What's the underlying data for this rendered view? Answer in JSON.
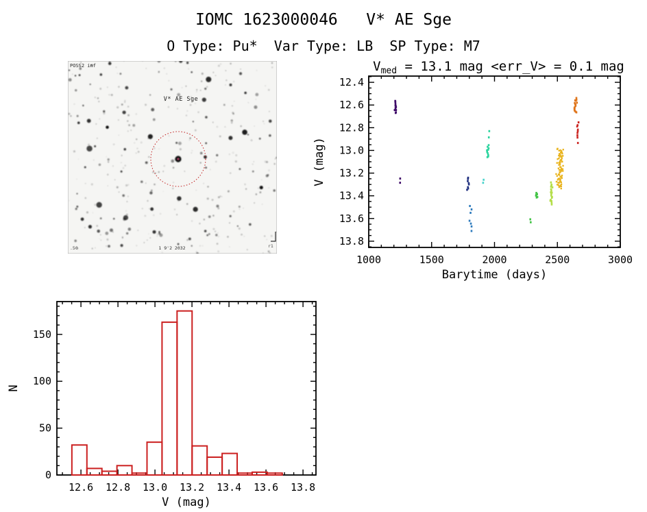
{
  "page": {
    "title": "IOMC 1623000046   V* AE Sge",
    "subtitle": "O Type: Pu*  Var Type: LB  SP Type: M7",
    "background": "#ffffff"
  },
  "finding_chart": {
    "target_label": "V* AE Sge",
    "survey_label": "POSS2 inf",
    "bottom_label": "1 9'2 2032",
    "corner_left_label": ".50",
    "corner_right_label": "r1",
    "marker_circle_color": "#c22020",
    "label_color": "#b22222"
  },
  "chart_data": [
    {
      "type": "scatter",
      "title": "Vmed = 13.1 mag <err_V> = 0.1 mag",
      "title_parts": {
        "base": "V",
        "sub": "med",
        "rest": " = 13.1 mag <err_V> = 0.1 mag"
      },
      "xlabel": "Barytime (days)",
      "ylabel": "V (mag)",
      "xlim": [
        1000,
        3000
      ],
      "ylim": [
        12.345,
        13.855
      ],
      "y_inverted": true,
      "xticks": [
        1000,
        1500,
        2000,
        2500,
        3000
      ],
      "yticks": [
        12.4,
        12.6,
        12.8,
        13.0,
        13.2,
        13.4,
        13.6,
        13.8
      ],
      "x_minor_step": 100,
      "y_minor_step": 0.05,
      "grid": false,
      "legend": "none",
      "series": [
        {
          "name": "epoch-1 purple strip",
          "color": "#3f0b69",
          "x": 1213,
          "xs": 2,
          "ymin": 12.56,
          "ymax": 12.67,
          "n": 12
        },
        {
          "name": "epoch-1 purple point",
          "color": "#3f0b69",
          "x": 1245,
          "xs": 1,
          "ymin": 13.25,
          "ymax": 13.28,
          "n": 2
        },
        {
          "name": "epoch-2 navy strip",
          "color": "#20307f",
          "x": 1790,
          "xs": 2,
          "ymin": 13.24,
          "ymax": 13.35,
          "n": 8
        },
        {
          "name": "epoch-3 blue points",
          "color": "#2e7bbd",
          "x": 1812,
          "xs": 2,
          "points_y": [
            13.49,
            13.52,
            13.55,
            13.62,
            13.645,
            13.67,
            13.71
          ]
        },
        {
          "name": "epoch-4 cyan dash",
          "color": "#49d3cb",
          "x": 1910,
          "xs": 1,
          "ymin": 13.26,
          "ymax": 13.285,
          "n": 2
        },
        {
          "name": "epoch-5 teal points",
          "color": "#2bd49e",
          "x": 1948,
          "xs": 2,
          "points_y": [
            12.83,
            12.885
          ]
        },
        {
          "name": "epoch-5 teal strip",
          "color": "#2bd49e",
          "x": 1948,
          "xs": 2,
          "ymin": 12.955,
          "ymax": 13.065,
          "n": 10
        },
        {
          "name": "epoch-6 green strip",
          "color": "#41c345",
          "x": 2333,
          "xs": 2,
          "ymin": 13.37,
          "ymax": 13.42,
          "n": 6
        },
        {
          "name": "epoch-6 green point",
          "color": "#41c345",
          "x": 2286,
          "xs": 1,
          "ymin": 13.61,
          "ymax": 13.63,
          "n": 2
        },
        {
          "name": "epoch-7 yellowgreen",
          "color": "#b4de4a",
          "x": 2452,
          "xs": 2,
          "ymin": 13.285,
          "ymax": 13.475,
          "n": 18
        },
        {
          "name": "epoch-8 gold blob",
          "color": "#e9b41f",
          "x": 2520,
          "xs": 6,
          "ymin": 12.985,
          "ymax": 13.33,
          "n": 85
        },
        {
          "name": "epoch-9 orange strip",
          "color": "#df751b",
          "x": 2646,
          "xs": 2.5,
          "ymin": 12.54,
          "ymax": 12.67,
          "n": 16
        },
        {
          "name": "epoch-10 red strip",
          "color": "#cb2420",
          "x": 2664,
          "xs": 1.5,
          "ymin": 12.755,
          "ymax": 12.885,
          "n": 8
        },
        {
          "name": "epoch-10 red point",
          "color": "#cb2420",
          "x": 2662,
          "xs": 1,
          "ymin": 12.93,
          "ymax": 12.945,
          "n": 1
        }
      ]
    },
    {
      "type": "histogram",
      "xlabel": "V (mag)",
      "ylabel": "N",
      "bar_color": "#cb1f1f",
      "bin_start": 12.551,
      "bin_width": 0.0812,
      "counts": [
        32,
        7,
        4,
        10,
        2,
        35,
        163,
        175,
        31,
        19,
        23,
        2,
        3,
        2
      ],
      "xticks": [
        12.6,
        12.8,
        13.0,
        13.2,
        13.4,
        13.6,
        13.8
      ],
      "yticks": [
        0,
        50,
        100,
        150
      ],
      "x_minor_step": 0.05,
      "y_minor_step": 10,
      "xlim": [
        12.47,
        13.87
      ],
      "ylim": [
        0,
        185
      ],
      "grid": false
    }
  ]
}
